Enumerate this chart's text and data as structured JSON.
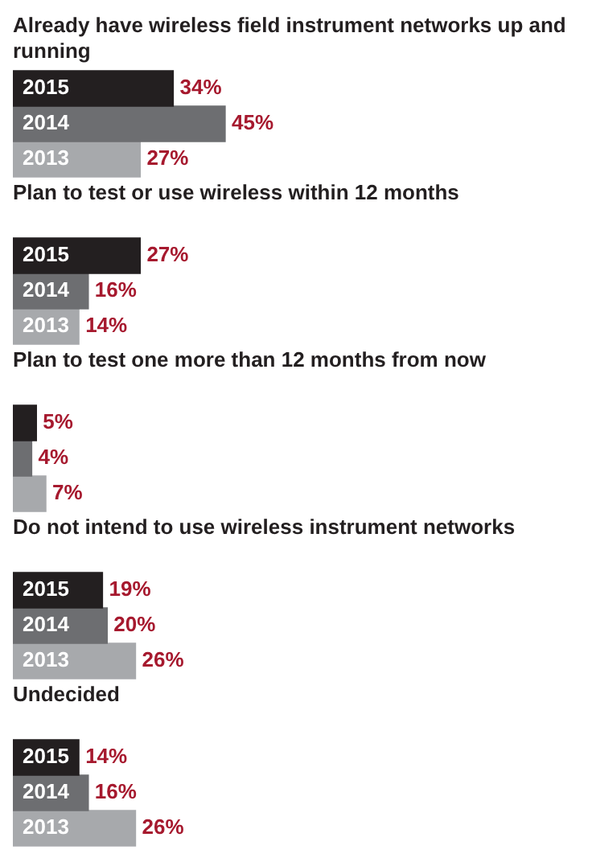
{
  "chart_data": {
    "type": "bar",
    "orientation": "horizontal",
    "categories": [
      "Already have wireless field instrument networks up and running",
      "Plan to test or use wireless within 12 months",
      "Plan to test one more than 12 months from now",
      "Do not intend to use wireless instrument networks",
      "Undecided"
    ],
    "series": [
      {
        "name": "2015",
        "color": "#231f20",
        "values": [
          34,
          27,
          5,
          19,
          14
        ],
        "value_labels": [
          "34%",
          "27%",
          "5%",
          "19%",
          "14%"
        ]
      },
      {
        "name": "2014",
        "color": "#6d6e71",
        "values": [
          45,
          16,
          4,
          20,
          16
        ],
        "value_labels": [
          "45%",
          "16%",
          "4%",
          "20%",
          "16%"
        ]
      },
      {
        "name": "2013",
        "color": "#a7a9ac",
        "values": [
          27,
          14,
          7,
          26,
          26
        ],
        "value_labels": [
          "27%",
          "14%",
          "7%",
          "26%",
          "26%"
        ]
      }
    ],
    "legend": false
  }
}
